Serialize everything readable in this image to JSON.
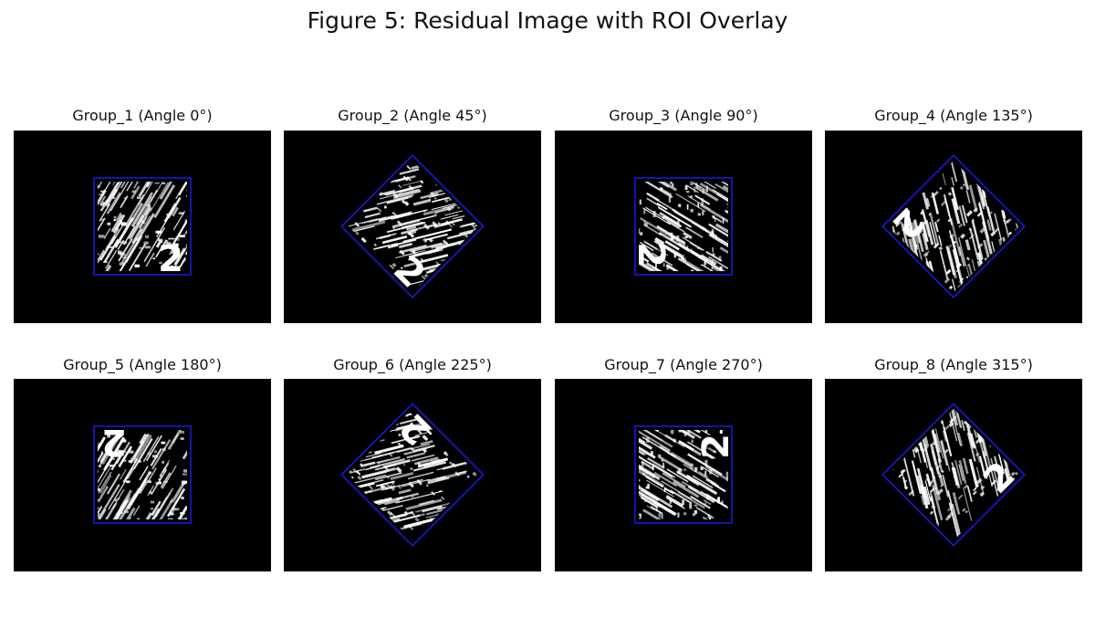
{
  "figure": {
    "title": "Figure 5: Residual Image with ROI Overlay"
  },
  "colors": {
    "background": "#000000",
    "roi_outline": "#1a1ad6",
    "residual": "#ffffff"
  },
  "panels": [
    {
      "title": "Group_1 (Angle 0°)",
      "angle": 0,
      "digit": "2"
    },
    {
      "title": "Group_2 (Angle 45°)",
      "angle": 45,
      "digit": "2"
    },
    {
      "title": "Group_3 (Angle 90°)",
      "angle": 90,
      "digit": "2"
    },
    {
      "title": "Group_4 (Angle 135°)",
      "angle": 135,
      "digit": "2"
    },
    {
      "title": "Group_5 (Angle 180°)",
      "angle": 180,
      "digit": "2"
    },
    {
      "title": "Group_6 (Angle 225°)",
      "angle": 225,
      "digit": "2"
    },
    {
      "title": "Group_7 (Angle 270°)",
      "angle": 270,
      "digit": "2"
    },
    {
      "title": "Group_8 (Angle 315°)",
      "angle": 315,
      "digit": "2"
    }
  ]
}
